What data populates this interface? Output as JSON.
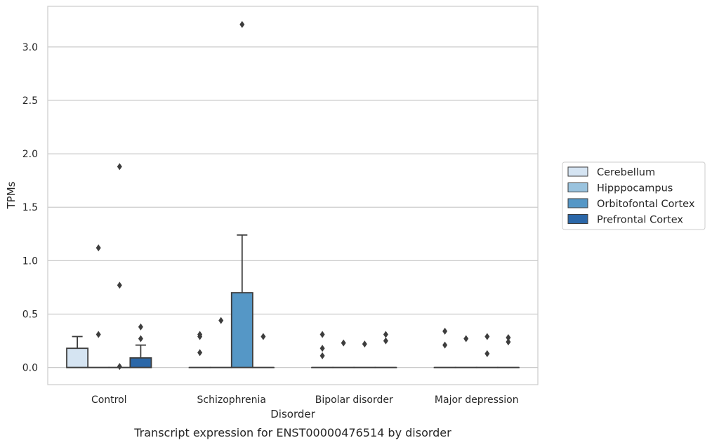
{
  "caption": "Transcript expression for ENST00000476514 by disorder",
  "chart_data": {
    "type": "box",
    "xlabel": "Disorder",
    "ylabel": "TPMs",
    "ylim": [
      -0.16,
      3.38
    ],
    "yticks": [
      "0.0",
      "0.5",
      "1.0",
      "1.5",
      "2.0",
      "2.5",
      "3.0"
    ],
    "categories": [
      "Control",
      "Schizophrenia",
      "Bipolar disorder",
      "Major depression"
    ],
    "grid": "horizontal",
    "legend_position": "right",
    "series": [
      {
        "name": "Cerebellum",
        "color": "#d5e4f2",
        "boxes": [
          {
            "q1": 0.0,
            "median": 0.0,
            "q3": 0.18,
            "whisker_low": 0.0,
            "whisker_high": 0.29,
            "outliers": []
          },
          {
            "q1": 0.0,
            "median": 0.0,
            "q3": 0.0,
            "whisker_low": 0.0,
            "whisker_high": 0.0,
            "outliers": [
              0.31,
              0.29,
              0.14
            ]
          },
          {
            "q1": 0.0,
            "median": 0.0,
            "q3": 0.0,
            "whisker_low": 0.0,
            "whisker_high": 0.0,
            "outliers": [
              0.31,
              0.18,
              0.11
            ]
          },
          {
            "q1": 0.0,
            "median": 0.0,
            "q3": 0.0,
            "whisker_low": 0.0,
            "whisker_high": 0.0,
            "outliers": [
              0.34,
              0.21
            ]
          }
        ]
      },
      {
        "name": "Hipppocampus",
        "color": "#9ac3de",
        "boxes": [
          {
            "q1": 0.0,
            "median": 0.0,
            "q3": 0.0,
            "whisker_low": 0.0,
            "whisker_high": 0.0,
            "outliers": [
              1.12,
              0.31
            ]
          },
          {
            "q1": 0.0,
            "median": 0.0,
            "q3": 0.0,
            "whisker_low": 0.0,
            "whisker_high": 0.0,
            "outliers": [
              0.44
            ]
          },
          {
            "q1": 0.0,
            "median": 0.0,
            "q3": 0.0,
            "whisker_low": 0.0,
            "whisker_high": 0.0,
            "outliers": [
              0.23
            ]
          },
          {
            "q1": 0.0,
            "median": 0.0,
            "q3": 0.0,
            "whisker_low": 0.0,
            "whisker_high": 0.0,
            "outliers": [
              0.27
            ]
          }
        ]
      },
      {
        "name": "Orbitofontal Cortex",
        "color": "#5597c6",
        "boxes": [
          {
            "q1": 0.0,
            "median": 0.0,
            "q3": 0.0,
            "whisker_low": 0.0,
            "whisker_high": 0.0,
            "outliers": [
              1.88,
              0.77,
              0.01
            ]
          },
          {
            "q1": 0.0,
            "median": 0.0,
            "q3": 0.7,
            "whisker_low": 0.0,
            "whisker_high": 1.24,
            "outliers": [
              3.21
            ]
          },
          {
            "q1": 0.0,
            "median": 0.0,
            "q3": 0.0,
            "whisker_low": 0.0,
            "whisker_high": 0.0,
            "outliers": [
              0.22
            ]
          },
          {
            "q1": 0.0,
            "median": 0.0,
            "q3": 0.0,
            "whisker_low": 0.0,
            "whisker_high": 0.0,
            "outliers": [
              0.29,
              0.13
            ]
          }
        ]
      },
      {
        "name": "Prefrontal Cortex",
        "color": "#2b67a8",
        "boxes": [
          {
            "q1": 0.0,
            "median": 0.0,
            "q3": 0.09,
            "whisker_low": 0.0,
            "whisker_high": 0.21,
            "outliers": [
              0.38,
              0.27
            ]
          },
          {
            "q1": 0.0,
            "median": 0.0,
            "q3": 0.0,
            "whisker_low": 0.0,
            "whisker_high": 0.0,
            "outliers": [
              0.29
            ]
          },
          {
            "q1": 0.0,
            "median": 0.0,
            "q3": 0.0,
            "whisker_low": 0.0,
            "whisker_high": 0.0,
            "outliers": [
              0.31,
              0.25
            ]
          },
          {
            "q1": 0.0,
            "median": 0.0,
            "q3": 0.0,
            "whisker_low": 0.0,
            "whisker_high": 0.0,
            "outliers": [
              0.28,
              0.24
            ]
          }
        ]
      }
    ]
  }
}
